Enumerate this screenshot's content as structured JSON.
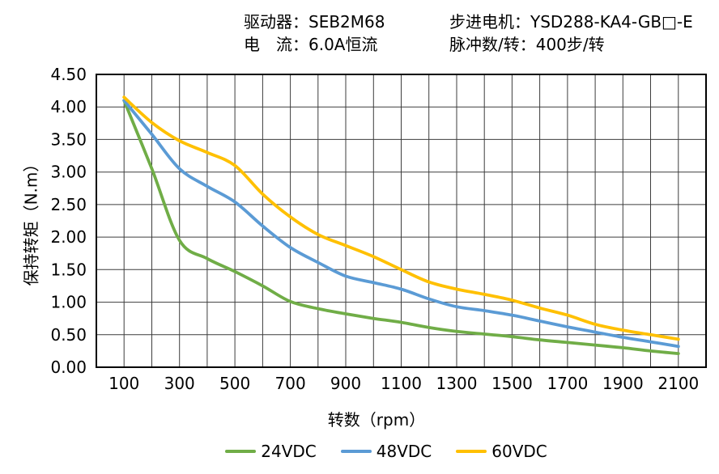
{
  "header": {
    "driver_line": "驱动器：SEB2M68",
    "current_line": "电　流：6.0A恒流",
    "motor_line": "步进电机：YSD288-KA4-GB□-E",
    "pulses_line": "脉冲数/转：400步/转"
  },
  "chart_data": {
    "type": "line",
    "title": "",
    "xlabel": "转数（rpm）",
    "ylabel": "保持转矩（N.m）",
    "xlim": [
      0,
      2200
    ],
    "ylim": [
      0,
      4.5
    ],
    "x_gridline_step": 100,
    "y_gridline_step": 0.5,
    "grid": true,
    "legend_position": "bottom",
    "x_ticks": [
      100,
      300,
      500,
      700,
      900,
      1100,
      1300,
      1500,
      1700,
      1900,
      2100
    ],
    "y_ticks": [
      "0.00",
      "0.50",
      "1.00",
      "1.50",
      "2.00",
      "2.50",
      "3.00",
      "3.50",
      "4.00",
      "4.50"
    ],
    "x": [
      100,
      200,
      300,
      400,
      500,
      600,
      700,
      800,
      900,
      1000,
      1100,
      1200,
      1300,
      1400,
      1500,
      1600,
      1700,
      1800,
      1900,
      2000,
      2100
    ],
    "series": [
      {
        "name": "24VDC",
        "color": "#70AD47",
        "values": [
          4.1,
          3.05,
          1.95,
          1.67,
          1.47,
          1.25,
          1.01,
          0.9,
          0.82,
          0.75,
          0.69,
          0.61,
          0.55,
          0.51,
          0.47,
          0.42,
          0.38,
          0.34,
          0.3,
          0.25,
          0.21
        ]
      },
      {
        "name": "48VDC",
        "color": "#5B9BD5",
        "values": [
          4.1,
          3.58,
          3.05,
          2.78,
          2.54,
          2.17,
          1.84,
          1.61,
          1.4,
          1.3,
          1.2,
          1.05,
          0.93,
          0.87,
          0.8,
          0.71,
          0.62,
          0.54,
          0.46,
          0.39,
          0.32
        ]
      },
      {
        "name": "60VDC",
        "color": "#FFC000",
        "values": [
          4.15,
          3.76,
          3.48,
          3.3,
          3.1,
          2.66,
          2.31,
          2.04,
          1.87,
          1.7,
          1.5,
          1.31,
          1.2,
          1.12,
          1.03,
          0.91,
          0.8,
          0.66,
          0.57,
          0.5,
          0.43
        ]
      }
    ]
  }
}
